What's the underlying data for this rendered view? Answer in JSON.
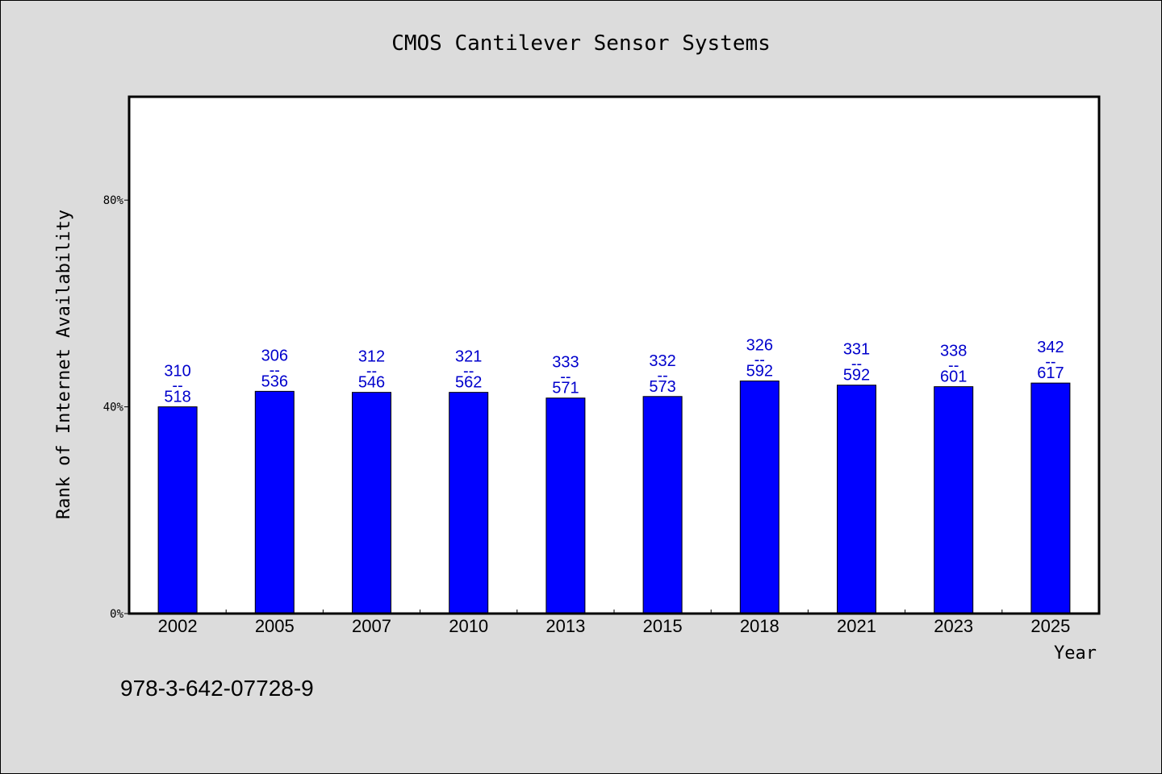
{
  "chart_data": {
    "type": "bar",
    "title": "CMOS Cantilever Sensor Systems",
    "xlabel": "Year",
    "ylabel": "Rank of Internet Availability",
    "categories": [
      "2002",
      "2005",
      "2007",
      "2010",
      "2013",
      "2015",
      "2018",
      "2021",
      "2023",
      "2025"
    ],
    "values": [
      0.4,
      0.43,
      0.428,
      0.428,
      0.417,
      0.42,
      0.45,
      0.442,
      0.439,
      0.446
    ],
    "bar_labels": [
      {
        "top": "310",
        "sep": "--",
        "bottom": "518"
      },
      {
        "top": "306",
        "sep": "--",
        "bottom": "536"
      },
      {
        "top": "312",
        "sep": "--",
        "bottom": "546"
      },
      {
        "top": "321",
        "sep": "--",
        "bottom": "562"
      },
      {
        "top": "333",
        "sep": "--",
        "bottom": "571"
      },
      {
        "top": "332",
        "sep": "--",
        "bottom": "573"
      },
      {
        "top": "326",
        "sep": "--",
        "bottom": "592"
      },
      {
        "top": "331",
        "sep": "--",
        "bottom": "592"
      },
      {
        "top": "338",
        "sep": "--",
        "bottom": "601"
      },
      {
        "top": "342",
        "sep": "--",
        "bottom": "617"
      }
    ],
    "yticks": [
      {
        "value": 0,
        "label": "0%"
      },
      {
        "value": 0.4,
        "label": "40%"
      },
      {
        "value": 0.8,
        "label": "80%"
      }
    ],
    "ylim": [
      0,
      1.0
    ],
    "grid": false,
    "legend": "none",
    "colors": {
      "bar": "#0000ff",
      "label": "#0000cc",
      "axis": "#000000",
      "background": "#dcdcdc",
      "plot": "#ffffff"
    }
  },
  "footer": {
    "isbn": "978-3-642-07728-9"
  }
}
